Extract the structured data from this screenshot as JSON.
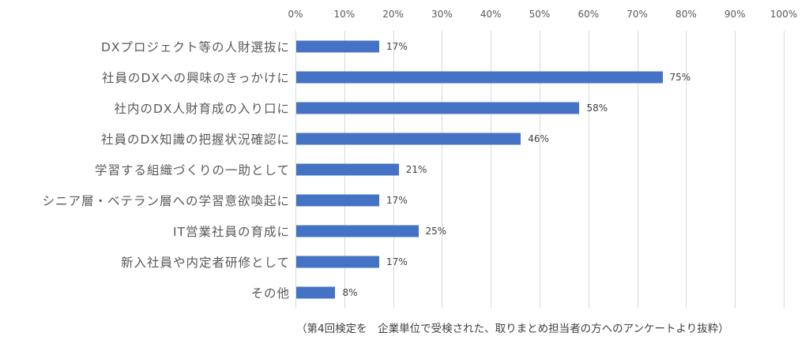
{
  "chart_data": {
    "type": "bar",
    "orientation": "horizontal",
    "title": "",
    "xlabel": "",
    "ylabel": "",
    "xlim": [
      0,
      100
    ],
    "x_ticks": [
      "0%",
      "10%",
      "20%",
      "30%",
      "40%",
      "50%",
      "60%",
      "70%",
      "80%",
      "90%",
      "100%"
    ],
    "grid": true,
    "legend": null,
    "bar_color": "#4472c4",
    "categories": [
      "DXプロジェクト等の人財選抜に",
      "社員のDXへの興味のきっかけに",
      "社内のDX人財育成の入り口に",
      "社員のDX知識の把握状況確認に",
      "学習する組織づくりの一助として",
      "シニア層・ベテラン層への学習意欲喚起に",
      "IT営業社員の育成に",
      "新入社員や内定者研修として",
      "その他"
    ],
    "values": [
      17,
      75,
      58,
      46,
      21,
      17,
      25,
      17,
      8
    ],
    "value_labels": [
      "17%",
      "75%",
      "58%",
      "46%",
      "21%",
      "17%",
      "25%",
      "17%",
      "8%"
    ],
    "footnote": "（第4回検定を　企業単位で受検された、取りまとめ担当者の方へのアンケートより抜粋）"
  }
}
